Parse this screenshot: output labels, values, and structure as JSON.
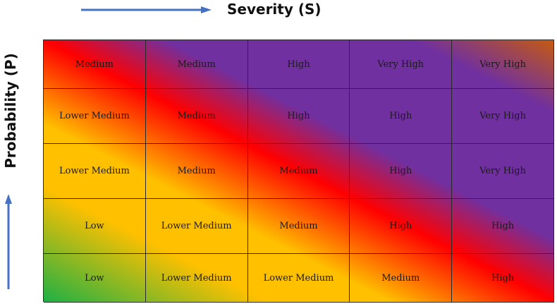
{
  "header": {
    "severity_label": "Severity (S)",
    "probability_label": "Probability (P)"
  },
  "colors": {
    "arrow": "#4472c4",
    "low": "#1db045",
    "lower_medium": "#ffc000",
    "medium": "#ff0000",
    "high": "#7030a0",
    "very_high": "#c55a11"
  },
  "matrix": {
    "rows": [
      {
        "cells": [
          "Medium",
          "Medium",
          "High",
          "Very High",
          "Very High"
        ]
      },
      {
        "cells": [
          "Lower Medium",
          "Medium",
          "High",
          "High",
          "Very High"
        ]
      },
      {
        "cells": [
          "Lower Medium",
          "Medium",
          "Medium",
          "High",
          "Very High"
        ]
      },
      {
        "cells": [
          "Low",
          "Lower Medium",
          "Medium",
          "High",
          "High"
        ]
      },
      {
        "cells": [
          "Low",
          "Lower Medium",
          "Lower Medium",
          "Medium",
          "High"
        ]
      }
    ]
  }
}
